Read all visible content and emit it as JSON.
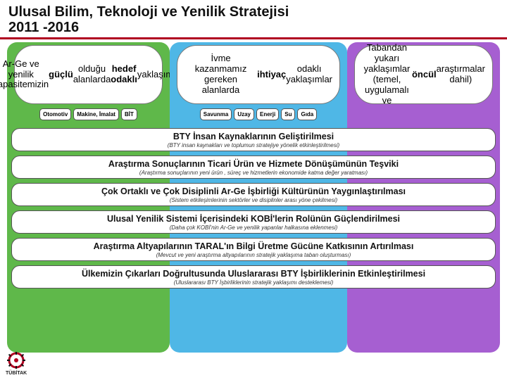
{
  "title": {
    "line1": "Ulusal Bilim, Teknoloji ve Yenilik Stratejisi",
    "line2": "2011 -2016"
  },
  "pillars": [
    {
      "color": "#5fb84a",
      "left_pct": 0,
      "width_pct": 33,
      "text": "Ar-Ge ve yenilik kapasitemizin güçlü olduğu alanlarda hedef odaklı yaklaşımlar",
      "bold_words": [
        "güçlü",
        "hedef odaklı"
      ],
      "tags": [
        "Otomotiv",
        "Makine, İmalat",
        "BİT"
      ]
    },
    {
      "color": "#4fb7e6",
      "left_pct": 33,
      "width_pct": 36,
      "text": "İvme kazanmamız gereken alanlarda ihtiyaç odaklı yaklaşımlar",
      "bold_words": [
        "ihtiyaç"
      ],
      "tags": [
        "Savunma",
        "Uzay",
        "Enerji",
        "Su",
        "Gıda"
      ]
    },
    {
      "color": "#a65fd1",
      "left_pct": 69,
      "width_pct": 31,
      "text": "Tabandan yukarı yaklaşımlar (temel, uygulamalı ve öncül araştırmalar dahil)",
      "bold_words": [
        "öncül"
      ],
      "tags": []
    }
  ],
  "bars": [
    {
      "title": "BTY İnsan Kaynaklarının Geliştirilmesi",
      "sub": "(BTY insan kaynakları ve toplumun stratejiye yönelik etkinleştirilmesi)"
    },
    {
      "title": "Araştırma Sonuçlarının Ticari Ürün ve Hizmete Dönüşümünün Teşviki",
      "sub": "(Araştırma sonuçlarının yeni ürün , süreç ve hizmetlerin ekonomide katma değer yaratması)"
    },
    {
      "title": "Çok Ortaklı ve Çok Disiplinli Ar-Ge İşbirliği Kültürünün Yaygınlaştırılması",
      "sub": "(Sistem etkileşimlerinin sektörler ve disiplinler arası yöne çekilmesi)"
    },
    {
      "title": "Ulusal Yenilik Sistemi İçerisindeki KOBİ'lerin Rolünün Güçlendirilmesi",
      "sub": "(Daha çok KOBİ'nin Ar-Ge ve yenilik yapanlar halkasına eklenmesi)"
    },
    {
      "title": "Araştırma Altyapılarının TARAL'ın Bilgi Üretme Gücüne Katkısının Artırılması",
      "sub": "(Mevcut ve yeni araştırma altyapılarının stratejik yaklaşıma taban oluşturması)"
    },
    {
      "title": "Ülkemizin Çıkarları Doğrultusunda Uluslararası BTY İşbirliklerinin Etkinleştirilmesi",
      "sub": "(Uluslararası BTY İşbirliklerinin stratejik yaklaşımı desteklemesi)"
    }
  ],
  "logo": {
    "label": "TÜBİTAK",
    "color": "#b00020"
  },
  "style": {
    "title_underline_color": "#b00020",
    "pillar_inner_bg": "#ffffff",
    "tag_border": "#555555",
    "bar_border": "#555555"
  }
}
